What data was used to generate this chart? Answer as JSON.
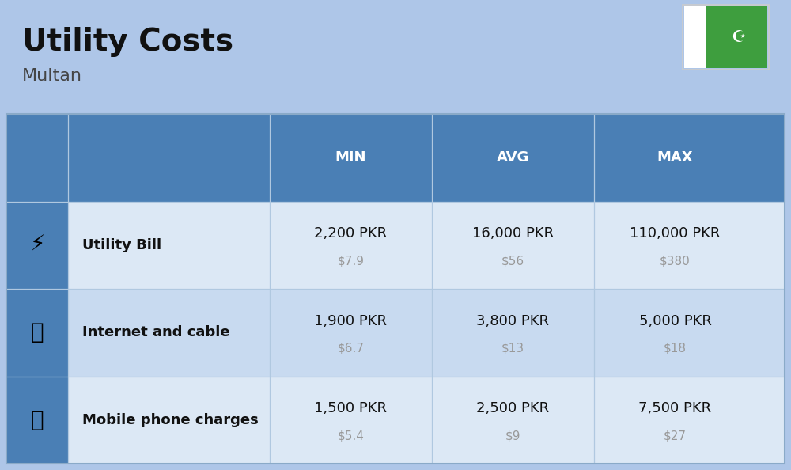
{
  "title": "Utility Costs",
  "subtitle": "Multan",
  "background_color": "#aec6e8",
  "header_bg_color": "#4a7fb5",
  "header_text_color": "#ffffff",
  "row_bg_color_1": "#dce8f5",
  "row_bg_color_2": "#c8daf0",
  "col_headers": [
    "MIN",
    "AVG",
    "MAX"
  ],
  "rows": [
    {
      "label": "Utility Bill",
      "min_pkr": "2,200 PKR",
      "min_usd": "$7.9",
      "avg_pkr": "16,000 PKR",
      "avg_usd": "$56",
      "max_pkr": "110,000 PKR",
      "max_usd": "$380"
    },
    {
      "label": "Internet and cable",
      "min_pkr": "1,900 PKR",
      "min_usd": "$6.7",
      "avg_pkr": "3,800 PKR",
      "avg_usd": "$13",
      "max_pkr": "5,000 PKR",
      "max_usd": "$18"
    },
    {
      "label": "Mobile phone charges",
      "min_pkr": "1,500 PKR",
      "min_usd": "$5.4",
      "avg_pkr": "2,500 PKR",
      "avg_usd": "$9",
      "max_pkr": "7,500 PKR",
      "max_usd": "$27"
    }
  ],
  "flag_green": "#3e9e3e",
  "flag_white": "#ffffff",
  "title_fontsize": 28,
  "subtitle_fontsize": 16,
  "header_fontsize": 13,
  "label_fontsize": 13,
  "value_fontsize": 13,
  "usd_fontsize": 11,
  "usd_color": "#999999",
  "label_bold_color": "#111111",
  "divider_color": "#b0c8e0",
  "border_color": "#8aaac8"
}
